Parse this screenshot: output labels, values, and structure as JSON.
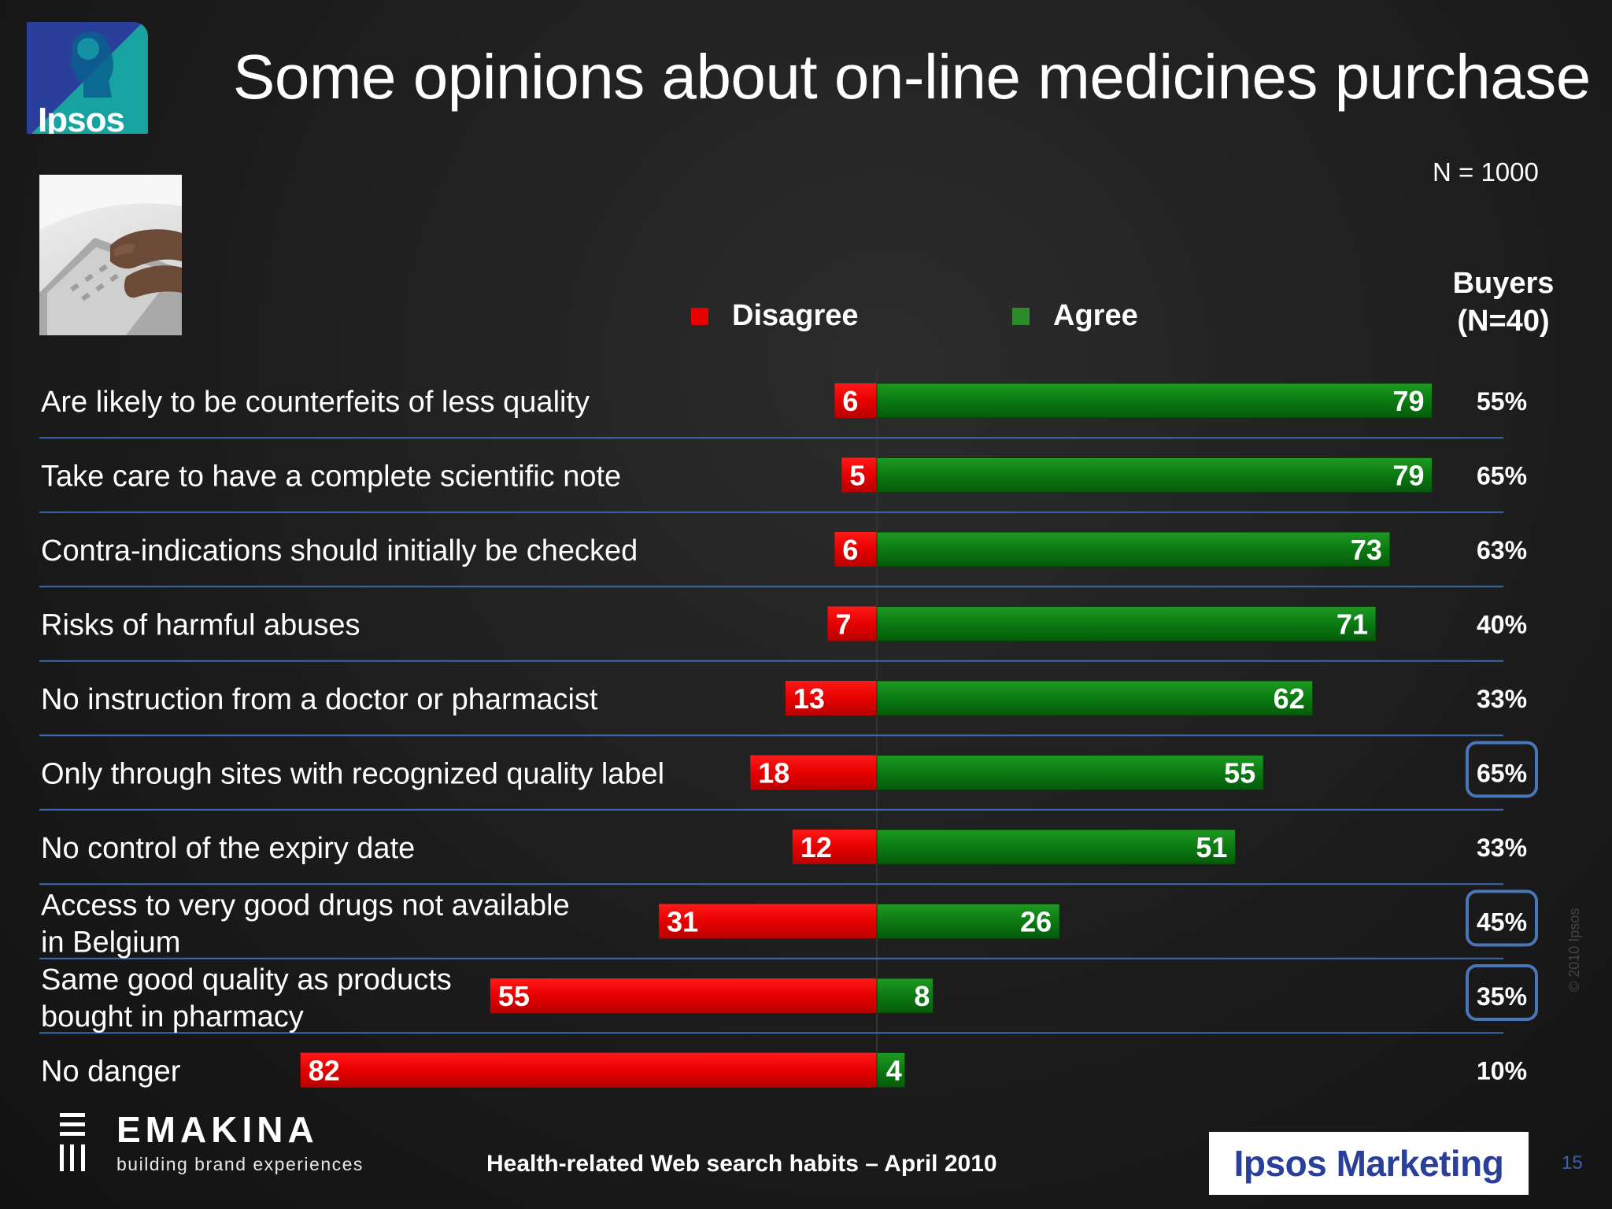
{
  "header": {
    "logo_text": "Ipsos",
    "title": "Some opinions about on-line medicines purchase"
  },
  "sample": {
    "total": "N = 1000"
  },
  "buyers_column": {
    "line1": "Buyers",
    "line2": "(N=40)"
  },
  "colors": {
    "disagree": "#e60000",
    "agree": "#0b7a12",
    "highlight_box": "#4a76b8"
  },
  "chart_data": {
    "type": "bar",
    "orientation": "horizontal-diverging",
    "legend": [
      {
        "name": "Disagree",
        "color": "#e60000"
      },
      {
        "name": "Agree",
        "color": "#0b7a12"
      }
    ],
    "categories": [
      [
        "Are likely to be counterfeits of less quality"
      ],
      [
        "Take care to have a complete scientific note"
      ],
      [
        "Contra-indications should initially be checked"
      ],
      [
        "Risks of harmful abuses"
      ],
      [
        "No instruction from a doctor or pharmacist"
      ],
      [
        "Only through sites with recognized quality label"
      ],
      [
        "No control of the expiry date"
      ],
      [
        "Access to very good drugs not available",
        "in Belgium"
      ],
      [
        "Same good quality as products",
        "bought in pharmacy"
      ],
      [
        "No danger"
      ]
    ],
    "series": [
      {
        "name": "Disagree",
        "values": [
          6,
          5,
          6,
          7,
          13,
          18,
          12,
          31,
          55,
          82
        ]
      },
      {
        "name": "Agree",
        "values": [
          79,
          79,
          73,
          71,
          62,
          55,
          51,
          26,
          8,
          4
        ]
      }
    ],
    "buyers": [
      "55%",
      "65%",
      "63%",
      "40%",
      "33%",
      "65%",
      "33%",
      "45%",
      "35%",
      "10%"
    ],
    "buyers_highlighted": [
      false,
      false,
      false,
      false,
      false,
      true,
      false,
      true,
      true,
      false
    ]
  },
  "footer": {
    "agency_brand": "EMAKINA",
    "agency_tagline": "building brand experiences",
    "source": "Health-related Web search habits – April 2010",
    "brand": "Ipsos Marketing",
    "page_number": "15",
    "copyright": "© 2010 Ipsos"
  }
}
